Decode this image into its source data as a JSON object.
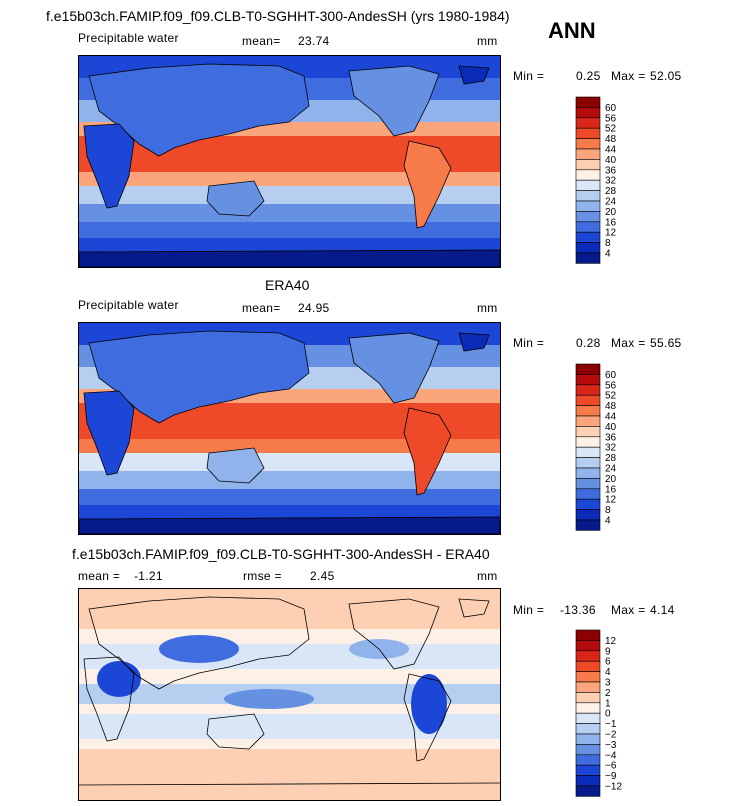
{
  "season": "ANN",
  "panels": [
    {
      "title": "f.e15b03ch.FAMIP.f09_f09.CLB-T0-SGHHT-300-AndesSH (yrs 1980-1984)",
      "variable": "Precipitable water",
      "mean_label": "mean=",
      "mean_value": "23.74",
      "units": "mm",
      "min_label": "Min =",
      "min_value": "0.25",
      "max_label": "Max =",
      "max_value": "52.05",
      "colorbar_levels": [
        "60",
        "56",
        "52",
        "48",
        "44",
        "40",
        "36",
        "32",
        "28",
        "24",
        "20",
        "16",
        "12",
        "8",
        "4"
      ],
      "colorbar_colors": [
        "#8b0000",
        "#b40c0c",
        "#d8261a",
        "#ee4a2a",
        "#f77a4a",
        "#fba57c",
        "#fdd0b3",
        "#fdf0e6",
        "#d8e6f7",
        "#b6cff0",
        "#8fb3ea",
        "#6691e2",
        "#3f6de0",
        "#1c47d6",
        "#0a2ab8",
        "#061a8c"
      ]
    },
    {
      "title": "ERA40",
      "variable": "Precipitable water",
      "mean_label": "mean=",
      "mean_value": "24.95",
      "units": "mm",
      "min_label": "Min =",
      "min_value": "0.28",
      "max_label": "Max =",
      "max_value": "55.65",
      "colorbar_levels": [
        "60",
        "56",
        "52",
        "48",
        "44",
        "40",
        "36",
        "32",
        "28",
        "24",
        "20",
        "16",
        "12",
        "8",
        "4"
      ],
      "colorbar_colors": [
        "#8b0000",
        "#b40c0c",
        "#d8261a",
        "#ee4a2a",
        "#f77a4a",
        "#fba57c",
        "#fdd0b3",
        "#fdf0e6",
        "#d8e6f7",
        "#b6cff0",
        "#8fb3ea",
        "#6691e2",
        "#3f6de0",
        "#1c47d6",
        "#0a2ab8",
        "#061a8c"
      ]
    },
    {
      "title": "f.e15b03ch.FAMIP.f09_f09.CLB-T0-SGHHT-300-AndesSH - ERA40",
      "mean_label": "mean =",
      "mean_value": "-1.21",
      "rmse_label": "rmse =",
      "rmse_value": "2.45",
      "units": "mm",
      "min_label": "Min =",
      "min_value": "-13.36",
      "max_label": "Max =",
      "max_value": "4.14",
      "colorbar_levels": [
        "12",
        "9",
        "6",
        "4",
        "3",
        "2",
        "1",
        "0",
        "-1",
        "-2",
        "-3",
        "-4",
        "-6",
        "-9",
        "-12"
      ],
      "colorbar_colors": [
        "#8b0000",
        "#b40c0c",
        "#d8261a",
        "#ee4a2a",
        "#f77a4a",
        "#fba57c",
        "#fdd0b3",
        "#fdf0e6",
        "#d8e6f7",
        "#b6cff0",
        "#8fb3ea",
        "#6691e2",
        "#3f6de0",
        "#1c47d6",
        "#0a2ab8",
        "#061a8c"
      ]
    }
  ],
  "chart_data": [
    {
      "type": "heatmap",
      "title": "f.e15b03ch.FAMIP.f09_f09.CLB-T0-SGHHT-300-AndesSH (yrs 1980-1984)",
      "subtitle": "Precipitable water",
      "units": "mm",
      "mean": 23.74,
      "min": 0.25,
      "max": 52.05,
      "contour_levels": [
        4,
        8,
        12,
        16,
        20,
        24,
        28,
        32,
        36,
        40,
        44,
        48,
        52,
        56,
        60
      ],
      "legend_placement": "right"
    },
    {
      "type": "heatmap",
      "title": "ERA40",
      "subtitle": "Precipitable water",
      "units": "mm",
      "mean": 24.95,
      "min": 0.28,
      "max": 55.65,
      "contour_levels": [
        4,
        8,
        12,
        16,
        20,
        24,
        28,
        32,
        36,
        40,
        44,
        48,
        52,
        56,
        60
      ],
      "legend_placement": "right"
    },
    {
      "type": "heatmap",
      "title": "f.e15b03ch.FAMIP.f09_f09.CLB-T0-SGHHT-300-AndesSH - ERA40",
      "units": "mm",
      "mean": -1.21,
      "rmse": 2.45,
      "min": -13.36,
      "max": 4.14,
      "contour_levels": [
        -12,
        -9,
        -6,
        -4,
        -3,
        -2,
        -1,
        0,
        1,
        2,
        3,
        4,
        6,
        9,
        12
      ],
      "legend_placement": "right"
    }
  ]
}
